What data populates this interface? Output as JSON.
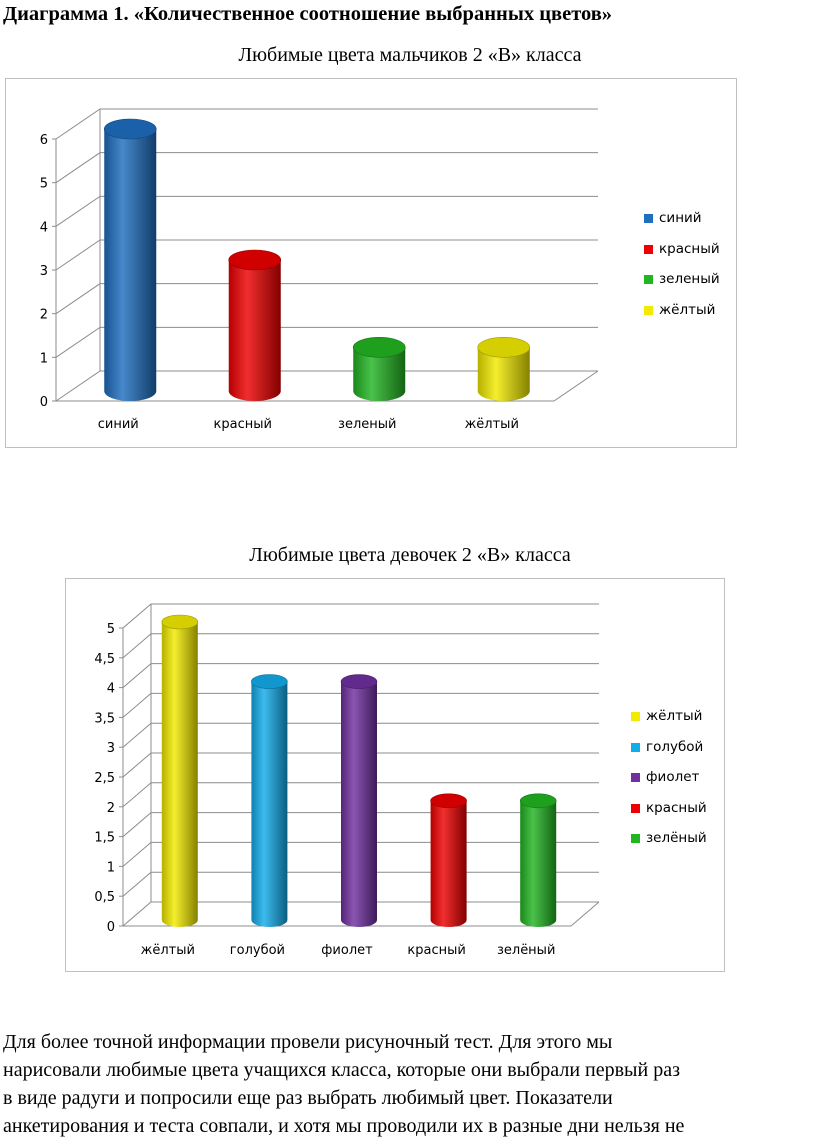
{
  "heading": "Диаграмма 1. «Количественное соотношение выбранных цветов»",
  "body_lines": [
    "Для более точной информации провели рисуночный тест. Для этого мы",
    "нарисовали любимые цвета учащихся класса, которые они выбрали первый раз",
    "в виде радуги и попросили еще раз выбрать любимый цвет. Показатели",
    "анкетирования и теста совпали, и хотя мы проводили их в разные дни  нельзя не"
  ],
  "chart_data": [
    {
      "type": "bar",
      "style": "3d-cylinder",
      "title": "Любимые цвета мальчиков 2 «В» класса",
      "categories": [
        "синий",
        "красный",
        "зеленый",
        "жёлтый"
      ],
      "values": [
        6,
        3,
        1,
        1
      ],
      "colors": [
        "#1f6ec0",
        "#ee0000",
        "#22b522",
        "#f2ea00"
      ],
      "ylim": [
        0,
        6
      ],
      "yticks": [
        "0",
        "1",
        "2",
        "3",
        "4",
        "5",
        "6"
      ],
      "xlabel": "",
      "ylabel": "",
      "grid": true,
      "legend_position": "right",
      "legend": [
        "синий",
        "красный",
        "зеленый",
        "жёлтый"
      ]
    },
    {
      "type": "bar",
      "style": "3d-cylinder",
      "title": "Любимые цвета девочек 2 «В» класса",
      "categories": [
        "жёлтый",
        "голубой",
        "фиолет",
        "красный",
        "зелёный"
      ],
      "values": [
        5,
        4,
        4,
        2,
        2
      ],
      "colors": [
        "#f2ea00",
        "#12acea",
        "#7030a0",
        "#ee0000",
        "#22b522"
      ],
      "ylim": [
        0,
        5
      ],
      "yticks": [
        "0",
        "0,5",
        "1",
        "1,5",
        "2",
        "2,5",
        "3",
        "3,5",
        "4",
        "4,5",
        "5"
      ],
      "xlabel": "",
      "ylabel": "",
      "grid": true,
      "legend_position": "right",
      "legend": [
        "жёлтый",
        "голубой",
        "фиолет",
        "красный",
        "зелёный"
      ]
    }
  ]
}
